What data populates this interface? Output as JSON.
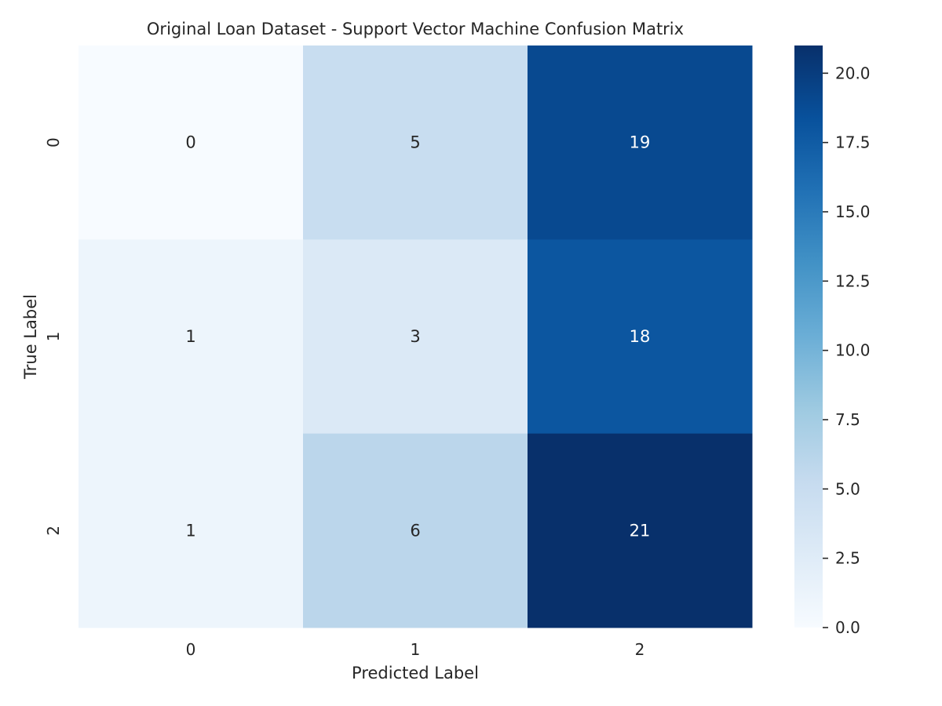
{
  "chart_data": {
    "type": "heatmap",
    "title": "Original Loan Dataset - Support Vector Machine Confusion Matrix",
    "xlabel": "Predicted Label",
    "ylabel": "True Label",
    "x_categories": [
      "0",
      "1",
      "2"
    ],
    "y_categories": [
      "0",
      "1",
      "2"
    ],
    "values": [
      [
        0,
        5,
        19
      ],
      [
        1,
        3,
        18
      ],
      [
        1,
        6,
        21
      ]
    ],
    "colormap": "Blues",
    "colorbar": {
      "min": 0,
      "max": 21,
      "ticks": [
        0.0,
        2.5,
        5.0,
        7.5,
        10.0,
        12.5,
        15.0,
        17.5,
        20.0
      ],
      "tick_labels": [
        "0.0",
        "2.5",
        "5.0",
        "7.5",
        "10.0",
        "12.5",
        "15.0",
        "17.5",
        "20.0"
      ]
    },
    "grid": false,
    "annotations": "cell values shown"
  },
  "colors": {
    "text_dark": "#262626",
    "text_light": "#ffffff",
    "blues_low": "#f7fbff",
    "blues_high": "#08306b"
  }
}
